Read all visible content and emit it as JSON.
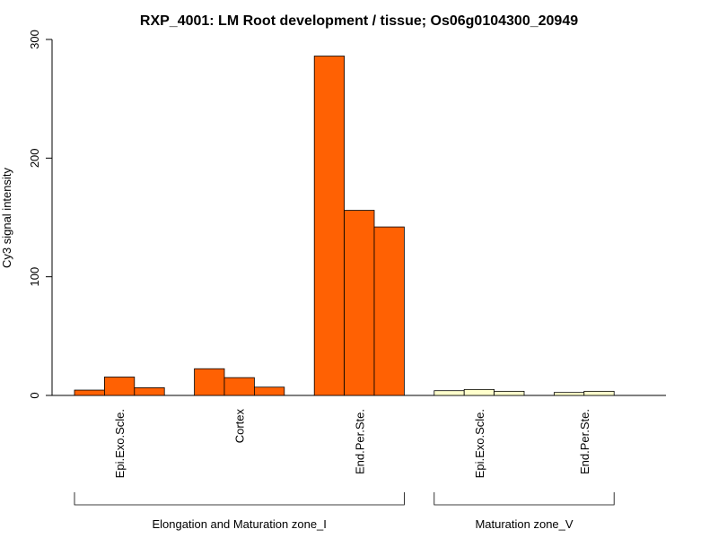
{
  "chart_data": {
    "type": "bar",
    "title": "RXP_4001: LM Root development / tissue; Os06g0104300_20949",
    "ylabel": "Cy3 signal intensity",
    "xlabel": "",
    "ylim": [
      0,
      300
    ],
    "yticks": [
      0,
      100,
      200,
      300
    ],
    "grid": false,
    "categories": [
      {
        "label": "Epi.Exo.Scle.",
        "color": "#FF6103",
        "values": [
          4.5,
          15.5,
          6.5
        ]
      },
      {
        "label": "Cortex",
        "color": "#FF6103",
        "values": [
          22.5,
          15,
          7
        ]
      },
      {
        "label": "End.Per.Ste.",
        "color": "#FF6103",
        "values": [
          286,
          156,
          142
        ]
      },
      {
        "label": "Epi.Exo.Scle.",
        "color": "#FFFFCC",
        "values": [
          4,
          5,
          3.5
        ]
      },
      {
        "label": "End.Per.Ste.",
        "color": "#FFFFCC",
        "values": [
          2.5,
          3.5
        ]
      }
    ],
    "groups": [
      {
        "label": "Elongation and Maturation zone_I",
        "categories": [
          0,
          1,
          2
        ]
      },
      {
        "label": "Maturation zone_V",
        "categories": [
          3,
          4
        ]
      }
    ]
  }
}
